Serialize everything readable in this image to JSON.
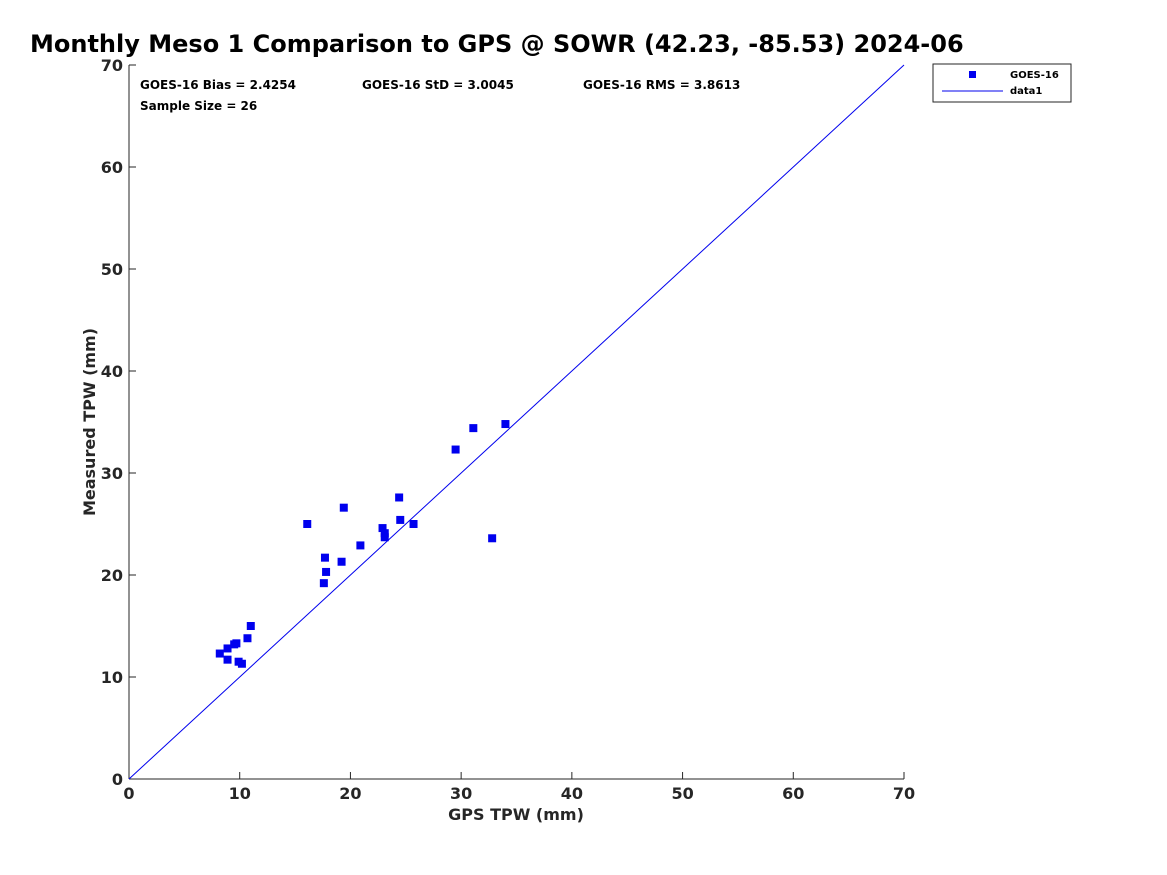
{
  "chart_data": {
    "type": "scatter",
    "title": "Monthly Meso 1 Comparison to GPS @ SOWR (42.23, -85.53) 2024-06",
    "xlabel": "GPS TPW (mm)",
    "ylabel": "Measured TPW (mm)",
    "xlim": [
      0,
      70
    ],
    "ylim": [
      0,
      70
    ],
    "xticks": [
      "0",
      "10",
      "20",
      "30",
      "40",
      "50",
      "60",
      "70"
    ],
    "yticks": [
      "0",
      "10",
      "20",
      "30",
      "40",
      "50",
      "60",
      "70"
    ],
    "grid": false,
    "legend_position": "top-right outside",
    "annotations": {
      "bias": "GOES-16 Bias = 2.4254",
      "std": "GOES-16 StD = 3.0045",
      "rms": "GOES-16 RMS = 3.8613",
      "sample_size": "Sample Size = 26"
    },
    "series": [
      {
        "name": "GOES-16",
        "marker": "square",
        "color": "#0000ee",
        "points": [
          [
            8.2,
            12.3
          ],
          [
            8.9,
            11.7
          ],
          [
            8.9,
            12.8
          ],
          [
            9.5,
            13.2
          ],
          [
            9.7,
            13.3
          ],
          [
            9.9,
            11.5
          ],
          [
            10.2,
            11.3
          ],
          [
            10.7,
            13.8
          ],
          [
            11.0,
            15.0
          ],
          [
            16.1,
            25.0
          ],
          [
            17.6,
            19.2
          ],
          [
            17.7,
            21.7
          ],
          [
            17.8,
            20.3
          ],
          [
            19.2,
            21.3
          ],
          [
            19.4,
            26.6
          ],
          [
            20.9,
            22.9
          ],
          [
            22.9,
            24.6
          ],
          [
            23.1,
            24.1
          ],
          [
            23.1,
            23.7
          ],
          [
            24.4,
            27.6
          ],
          [
            24.5,
            25.4
          ],
          [
            25.7,
            25.0
          ],
          [
            29.5,
            32.3
          ],
          [
            31.1,
            34.4
          ],
          [
            32.8,
            23.6
          ],
          [
            34.0,
            34.8
          ]
        ]
      },
      {
        "name": "data1",
        "type": "line",
        "color": "#0000ee",
        "x": [
          0,
          70
        ],
        "y": [
          0,
          70
        ]
      }
    ]
  }
}
